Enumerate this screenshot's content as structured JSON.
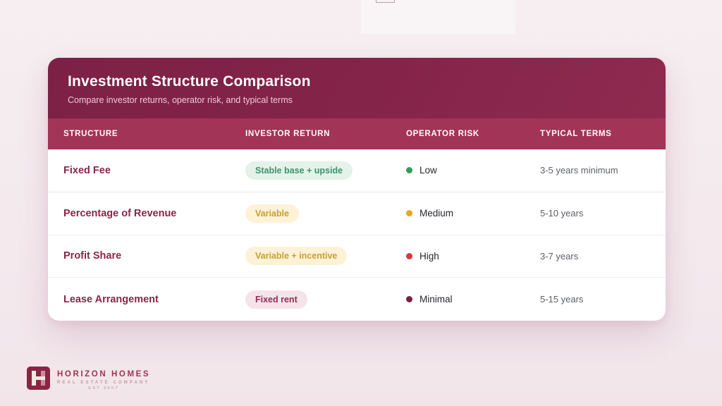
{
  "header": {
    "title": "Investment Structure Comparison",
    "subtitle": "Compare investor returns, operator risk, and typical terms"
  },
  "table": {
    "columns": [
      "STRUCTURE",
      "INVESTOR RETURN",
      "OPERATOR RISK",
      "TYPICAL TERMS"
    ],
    "rows": [
      {
        "structure": "Fixed Fee",
        "investor_return": "Stable base + upside",
        "return_variant": "green",
        "risk": "Low",
        "terms": "3-5 years minimum"
      },
      {
        "structure": "Percentage of Revenue",
        "investor_return": "Variable",
        "return_variant": "amber",
        "risk": "Medium",
        "terms": "5-10 years"
      },
      {
        "structure": "Profit Share",
        "investor_return": "Variable + incentive",
        "return_variant": "amber",
        "risk": "High",
        "terms": "3-7 years"
      },
      {
        "structure": "Lease Arrangement",
        "investor_return": "Fixed rent",
        "return_variant": "pink",
        "risk": "Minimal",
        "terms": "5-15 years"
      }
    ]
  },
  "footer_logo": {
    "company": "HORIZON HOMES",
    "tagline": "REAL ESTATE COMPANY",
    "established": "EST 2007"
  },
  "colors": {
    "page_background": "#f5edf0",
    "header_gradient_start": "#7c2145",
    "header_gradient_end": "#8f2a4f",
    "column_band": "#a23457",
    "structure_text": "#8b2549",
    "badge_green_bg": "#e4f2ea",
    "badge_green_text": "#3c926b",
    "badge_amber_bg": "#fdf2d6",
    "badge_amber_text": "#c79f39",
    "badge_pink_bg": "#f5e3e9",
    "badge_pink_text": "#8d3054",
    "risk_dot_low": "#2f9e5b",
    "risk_dot_medium": "#eaa71c",
    "risk_dot_high": "#dd3644",
    "risk_dot_minimal": "#7c1f42",
    "terms_text": "#5d6066",
    "logo_maroon": "#8b2443"
  }
}
